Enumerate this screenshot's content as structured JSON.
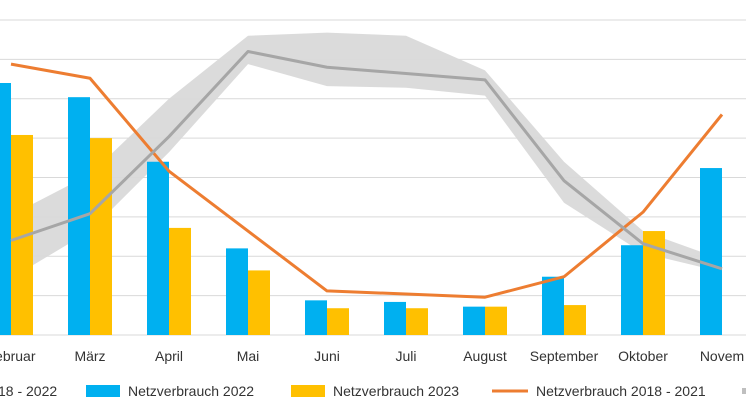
{
  "chart_data": {
    "type": "bar",
    "categories": [
      "Februar",
      "März",
      "April",
      "Mai",
      "Juni",
      "Juli",
      "August",
      "September",
      "Oktober",
      "Novem"
    ],
    "ylim": [
      0,
      100
    ],
    "grid": true,
    "legend_position": "bottom",
    "series": [
      {
        "name": "Netzverbrauch 2022",
        "type": "bar",
        "color": "#00b0f0",
        "values": [
          80,
          75.5,
          55,
          27.5,
          11,
          10.5,
          9,
          18.5,
          28.5,
          53
        ]
      },
      {
        "name": "Netzverbrauch 2023",
        "type": "bar",
        "color": "#ffc000",
        "values": [
          63.5,
          62.5,
          34,
          20.5,
          8.5,
          8.5,
          9,
          9.5,
          33,
          null
        ]
      },
      {
        "name": "Netzverbrauch 2018 - 2021",
        "type": "line",
        "color": "#ed7d31",
        "values": [
          86,
          81.5,
          52,
          33,
          14,
          13,
          12,
          18.5,
          39,
          70
        ]
      },
      {
        "name": "",
        "type": "line",
        "color": "#a6a6a6",
        "values": [
          30,
          38.5,
          63,
          90,
          85,
          83,
          81,
          49,
          29,
          21
        ]
      },
      {
        "name": "",
        "type": "band",
        "color": "#d9d9d9",
        "lower": [
          18,
          33,
          58,
          86,
          79,
          78.5,
          76,
          42,
          26,
          20
        ],
        "upper": [
          38,
          51,
          75,
          95,
          96,
          95,
          84,
          55,
          33,
          24
        ]
      }
    ],
    "legend": [
      "18 - 2022",
      "Netzverbrauch 2022",
      "Netzverbrauch 2023",
      "Netzverbrauch 2018 - 2021"
    ]
  }
}
